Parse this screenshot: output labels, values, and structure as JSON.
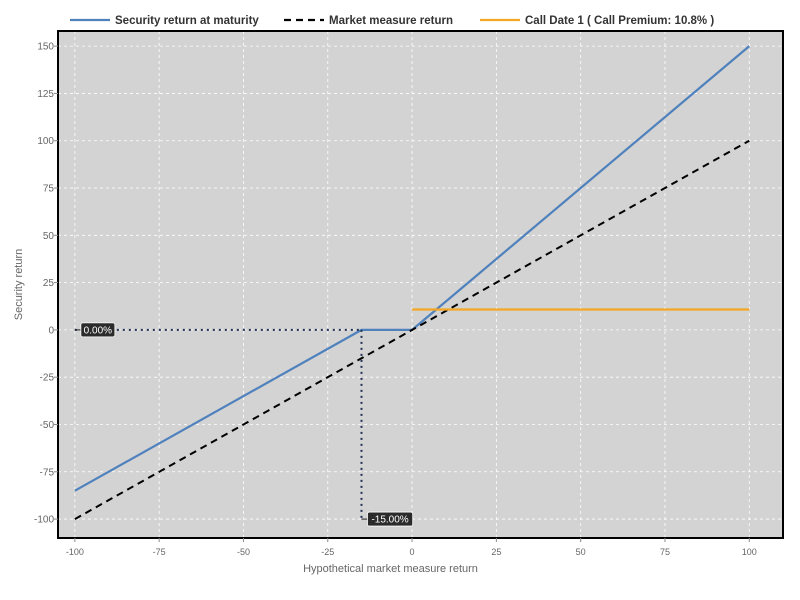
{
  "chart_data": {
    "type": "line",
    "xlabel": "Hypothetical market measure return",
    "ylabel": "Security return",
    "xlim": [
      -105,
      110
    ],
    "ylim": [
      -110,
      158
    ],
    "x_ticks": [
      -100,
      -75,
      -50,
      -25,
      0,
      25,
      50,
      75,
      100
    ],
    "y_ticks": [
      -100,
      -75,
      -50,
      -25,
      0,
      25,
      50,
      75,
      100,
      125,
      150
    ],
    "grid": true,
    "legend_position": "top",
    "series": [
      {
        "name": "Security return at maturity",
        "style": "solid",
        "color": "#4F81BD",
        "x": [
          -100,
          -15,
          0,
          100
        ],
        "y": [
          -85,
          0,
          0,
          150
        ]
      },
      {
        "name": "Market measure return",
        "style": "dashed",
        "color": "#000000",
        "x": [
          -100,
          100
        ],
        "y": [
          -100,
          100
        ]
      },
      {
        "name": "Call Date 1 ( Call Premium: 10.8% )",
        "style": "solid",
        "color": "#F5A623",
        "x": [
          0,
          100
        ],
        "y": [
          10.8,
          10.8
        ]
      }
    ],
    "annotations": [
      {
        "text": "0.00%",
        "x": -100,
        "y": 0
      },
      {
        "text": "-15.00%",
        "x": -15,
        "y": -100
      }
    ],
    "guide_lines": [
      {
        "style": "dotted",
        "x": [
          -100,
          -15
        ],
        "y": [
          0,
          0
        ]
      },
      {
        "style": "dotted",
        "x": [
          -15,
          -15
        ],
        "y": [
          0,
          -100
        ]
      }
    ]
  }
}
